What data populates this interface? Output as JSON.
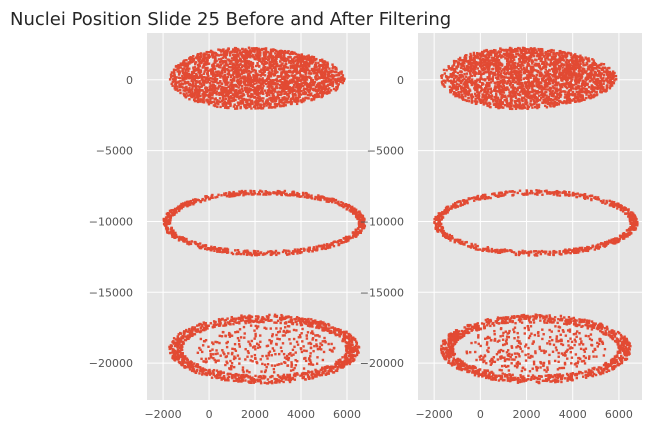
{
  "title": "Nuclei Position Slide 25 Before and After Filtering",
  "colors": {
    "plot_bg": "#e5e5e5",
    "grid": "#ffffff",
    "points": "#e24a33",
    "tick_text": "#555555",
    "title_text": "#262626"
  },
  "chart_data": [
    {
      "type": "scatter",
      "title": "",
      "xlabel": "",
      "ylabel": "",
      "xlim": [
        -2700,
        7000
      ],
      "ylim": [
        -22600,
        3300
      ],
      "xticks": [
        -2000,
        0,
        2000,
        4000,
        6000
      ],
      "xtick_labels": [
        "−2000",
        "0",
        "2000",
        "4000",
        "6000"
      ],
      "yticks": [
        0,
        -5000,
        -10000,
        -15000,
        -20000
      ],
      "ytick_labels": [
        "0",
        "−5000",
        "−10000",
        "−15000",
        "−20000"
      ],
      "grid": true,
      "legend": "none",
      "series": [
        {
          "name": "",
          "color": "#e24a33",
          "regions": [
            {
              "shape": "filled-blob",
              "center": [
                2100,
                100
              ],
              "radius": [
                3800,
                2150
              ],
              "point_count": 2600
            },
            {
              "shape": "ring",
              "center": [
                2400,
                -10100
              ],
              "radius": [
                4250,
                2150
              ],
              "thickness": 320,
              "point_count": 800
            },
            {
              "shape": "ring-with-sparse-interior",
              "center": [
                2400,
                -19000
              ],
              "radius": [
                3850,
                2150
              ],
              "thickness": 560,
              "point_count": 1400
            }
          ]
        }
      ]
    },
    {
      "type": "scatter",
      "title": "",
      "xlabel": "",
      "ylabel": "",
      "xlim": [
        -2700,
        7000
      ],
      "ylim": [
        -22600,
        3300
      ],
      "xticks": [
        -2000,
        0,
        2000,
        4000,
        6000
      ],
      "xtick_labels": [
        "−2000",
        "0",
        "2000",
        "4000",
        "6000"
      ],
      "yticks": [
        0,
        -5000,
        -10000,
        -15000,
        -20000
      ],
      "ytick_labels": [
        "0",
        "−5000",
        "−10000",
        "−15000",
        "−20000"
      ],
      "grid": true,
      "legend": "none",
      "series": [
        {
          "name": "",
          "color": "#e24a33",
          "regions": [
            {
              "shape": "filled-blob",
              "center": [
                2100,
                100
              ],
              "radius": [
                3800,
                2150
              ],
              "point_count": 2500
            },
            {
              "shape": "ring",
              "center": [
                2400,
                -10100
              ],
              "radius": [
                4250,
                2150
              ],
              "thickness": 320,
              "point_count": 760
            },
            {
              "shape": "ring-with-sparse-interior",
              "center": [
                2400,
                -19000
              ],
              "radius": [
                3850,
                2150
              ],
              "thickness": 560,
              "point_count": 1350
            }
          ]
        }
      ]
    }
  ]
}
